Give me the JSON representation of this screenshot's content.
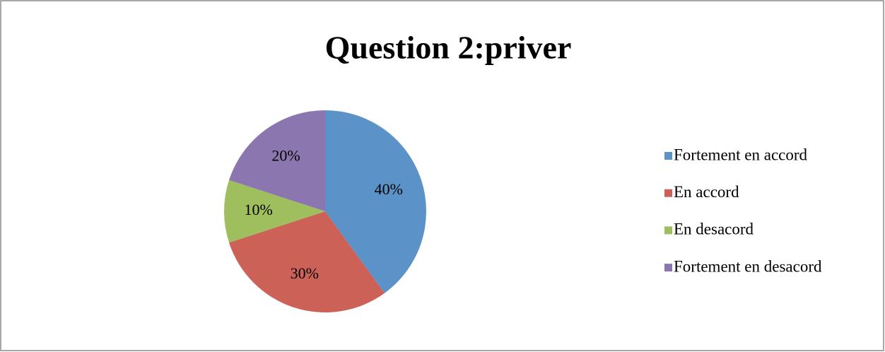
{
  "chart_data": {
    "type": "pie",
    "title": "Question 2:priver",
    "categories": [
      "Fortement en accord",
      "En accord",
      "En desacord",
      "Fortement en desacord"
    ],
    "values": [
      40,
      30,
      10,
      20
    ],
    "value_labels": [
      "40%",
      "30%",
      "10%",
      "20%"
    ],
    "colors": [
      "#5b93c8",
      "#cc6157",
      "#9fbe5d",
      "#8c76b0"
    ],
    "legend": "right"
  }
}
